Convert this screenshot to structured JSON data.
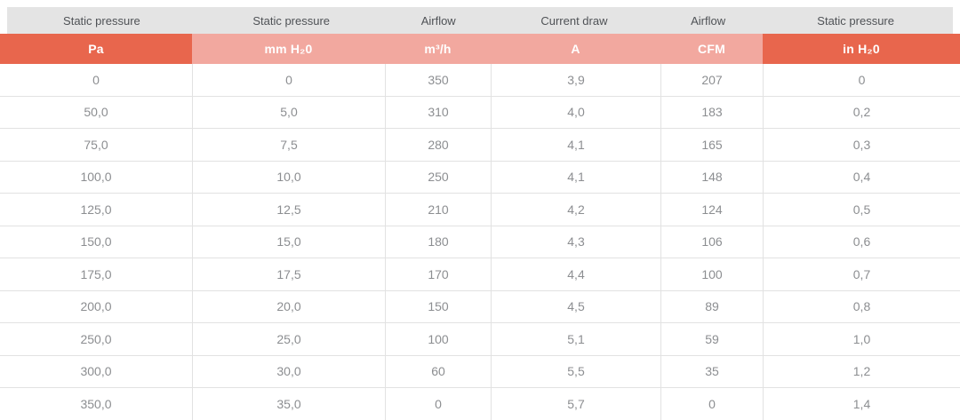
{
  "table": {
    "columns": [
      {
        "group": "Static pressure",
        "unit": "Pa",
        "emphasis": true
      },
      {
        "group": "Static pressure",
        "unit": "mm H₂0",
        "emphasis": false
      },
      {
        "group": "Airflow",
        "unit": "m³/h",
        "emphasis": false
      },
      {
        "group": "Current draw",
        "unit": "A",
        "emphasis": false
      },
      {
        "group": "Airflow",
        "unit": "CFM",
        "emphasis": false
      },
      {
        "group": "Static pressure",
        "unit": "in H₂0",
        "emphasis": true
      }
    ],
    "rows": [
      [
        "0",
        "0",
        "350",
        "3,9",
        "207",
        "0"
      ],
      [
        "50,0",
        "5,0",
        "310",
        "4,0",
        "183",
        "0,2"
      ],
      [
        "75,0",
        "7,5",
        "280",
        "4,1",
        "165",
        "0,3"
      ],
      [
        "100,0",
        "10,0",
        "250",
        "4,1",
        "148",
        "0,4"
      ],
      [
        "125,0",
        "12,5",
        "210",
        "4,2",
        "124",
        "0,5"
      ],
      [
        "150,0",
        "15,0",
        "180",
        "4,3",
        "106",
        "0,6"
      ],
      [
        "175,0",
        "17,5",
        "170",
        "4,4",
        "100",
        "0,7"
      ],
      [
        "200,0",
        "20,0",
        "150",
        "4,5",
        "89",
        "0,8"
      ],
      [
        "250,0",
        "25,0",
        "100",
        "5,1",
        "59",
        "1,0"
      ],
      [
        "300,0",
        "30,0",
        "60",
        "5,5",
        "35",
        "1,2"
      ],
      [
        "350,0",
        "35,0",
        "0",
        "5,7",
        "0",
        "1,4"
      ]
    ]
  },
  "colors": {
    "accent_dark": "#e8664d",
    "accent_light": "#f2a89f",
    "group_header_bg": "#e4e4e4",
    "group_header_text": "#4f5256",
    "data_text": "#8c8e91",
    "grid_line": "#e2e2e2",
    "unit_text": "#ffffff"
  },
  "chart_data": {
    "type": "table",
    "title": "",
    "columns": [
      "Static pressure (Pa)",
      "Static pressure (mm H₂0)",
      "Airflow (m³/h)",
      "Current draw (A)",
      "Airflow (CFM)",
      "Static pressure (in H₂0)"
    ],
    "rows": [
      [
        0,
        0,
        350,
        3.9,
        207,
        0
      ],
      [
        50,
        5,
        310,
        4.0,
        183,
        0.2
      ],
      [
        75,
        7.5,
        280,
        4.1,
        165,
        0.3
      ],
      [
        100,
        10,
        250,
        4.1,
        148,
        0.4
      ],
      [
        125,
        12.5,
        210,
        4.2,
        124,
        0.5
      ],
      [
        150,
        15,
        180,
        4.3,
        106,
        0.6
      ],
      [
        175,
        17.5,
        170,
        4.4,
        100,
        0.7
      ],
      [
        200,
        20,
        150,
        4.5,
        89,
        0.8
      ],
      [
        250,
        25,
        100,
        5.1,
        59,
        1.0
      ],
      [
        300,
        30,
        60,
        5.5,
        35,
        1.2
      ],
      [
        350,
        35,
        0,
        5.7,
        0,
        1.4
      ]
    ],
    "decimal_separator": ",",
    "layout": "two header rows: quantity group row (gray) and unit row (coral); emphasized first and last unit cells (dark coral)"
  }
}
